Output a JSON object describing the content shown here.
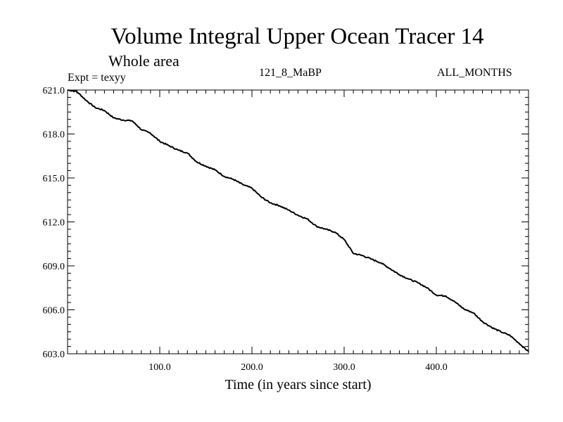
{
  "chart_data": {
    "type": "line",
    "title": "Volume Integral Upper Ocean Tracer 14",
    "subtitle": "Whole area",
    "annotations": {
      "experiment": "Expt = texyy",
      "run": "121_8_MaBP",
      "months": "ALL_MONTHS"
    },
    "xlabel": "Time (in years since start)",
    "ylabel": "",
    "xlim": [
      0,
      500
    ],
    "ylim": [
      603.0,
      621.0
    ],
    "xticks": [
      100,
      200,
      300,
      400
    ],
    "xtick_labels": [
      "100.0",
      "200.0",
      "300.0",
      "400.0"
    ],
    "yticks": [
      603,
      606,
      609,
      612,
      615,
      618,
      621
    ],
    "ytick_labels": [
      "603.0",
      "606.0",
      "609.0",
      "612.0",
      "615.0",
      "618.0",
      "621.0"
    ],
    "grid": false,
    "line_color": "#000000",
    "series": [
      {
        "x": [
          0,
          10,
          20,
          30,
          40,
          50,
          60,
          70,
          80,
          90,
          100,
          110,
          120,
          130,
          140,
          150,
          160,
          170,
          180,
          190,
          200,
          210,
          220,
          230,
          240,
          250,
          260,
          270,
          280,
          290,
          300,
          310,
          320,
          330,
          340,
          350,
          360,
          370,
          380,
          390,
          400,
          410,
          420,
          430,
          440,
          450,
          460,
          470,
          480,
          490,
          500
        ],
        "y": [
          621.0,
          620.9,
          620.3,
          619.8,
          619.6,
          619.1,
          618.95,
          618.9,
          618.3,
          618.05,
          617.5,
          617.2,
          616.9,
          616.7,
          616.1,
          615.8,
          615.55,
          615.1,
          614.9,
          614.55,
          614.3,
          613.7,
          613.3,
          613.1,
          612.8,
          612.45,
          612.2,
          611.7,
          611.5,
          611.3,
          610.8,
          609.85,
          609.7,
          609.45,
          609.2,
          608.8,
          608.4,
          608.1,
          607.85,
          607.5,
          607.0,
          606.95,
          606.55,
          606.05,
          605.8,
          605.2,
          604.8,
          604.5,
          604.25,
          603.7,
          603.15
        ]
      }
    ]
  }
}
